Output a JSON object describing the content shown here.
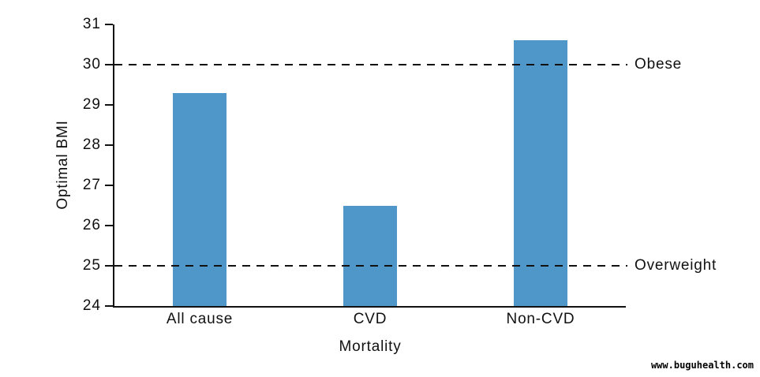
{
  "watermark": "www.buguhealth.com",
  "chart_data": {
    "type": "bar",
    "categories": [
      "All cause",
      "CVD",
      "Non-CVD"
    ],
    "values": [
      29.3,
      26.5,
      30.6
    ],
    "title": "",
    "xlabel": "Mortality",
    "ylabel": "Optimal BMI",
    "ylim": [
      24,
      31
    ],
    "yticks": [
      24,
      25,
      26,
      27,
      28,
      29,
      30,
      31
    ],
    "reference_lines": [
      {
        "value": 30,
        "label": "Obese"
      },
      {
        "value": 25,
        "label": "Overweight"
      }
    ],
    "bar_color": "#4f96c9",
    "axis_color": "#111111",
    "grid": false,
    "legend_position": "none"
  }
}
